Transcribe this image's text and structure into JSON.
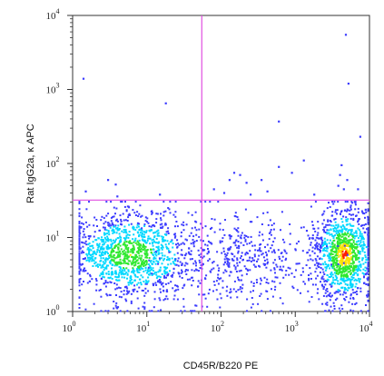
{
  "chart_data": {
    "type": "scatter",
    "subtype": "flow-cytometry-density-dot-plot",
    "xlabel": "CD45R/B220 PE",
    "ylabel": "Rat IgG2a, κ APC",
    "x_scale": "log",
    "y_scale": "log",
    "xlim": [
      1,
      10000
    ],
    "ylim": [
      1,
      10000
    ],
    "x_ticks": [
      {
        "value": 1,
        "base": "10",
        "exp": "0"
      },
      {
        "value": 10,
        "base": "10",
        "exp": "1"
      },
      {
        "value": 100,
        "base": "10",
        "exp": "2"
      },
      {
        "value": 1000,
        "base": "10",
        "exp": "3"
      },
      {
        "value": 10000,
        "base": "10",
        "exp": "4"
      }
    ],
    "y_ticks": [
      {
        "value": 1,
        "base": "10",
        "exp": "0"
      },
      {
        "value": 10,
        "base": "10",
        "exp": "1"
      },
      {
        "value": 100,
        "base": "10",
        "exp": "2"
      },
      {
        "value": 1000,
        "base": "10",
        "exp": "3"
      },
      {
        "value": 10000,
        "base": "10",
        "exp": "4"
      }
    ],
    "quadrant_gates": {
      "x": 55,
      "y": 32,
      "color": "#e04fe0"
    },
    "populations": [
      {
        "center_x": 6,
        "center_y": 6,
        "log_sd_x": 0.45,
        "log_sd_y": 0.3,
        "density": "high"
      },
      {
        "center_x": 4500,
        "center_y": 6,
        "log_sd_x": 0.2,
        "log_sd_y": 0.32,
        "density": "very-high"
      },
      {
        "center_x": 200,
        "center_y": 5,
        "log_sd_x": 0.5,
        "log_sd_y": 0.3,
        "density": "low"
      }
    ],
    "outliers": [
      {
        "x": 1.4,
        "y": 1400
      },
      {
        "x": 18,
        "y": 650
      },
      {
        "x": 4800,
        "y": 5500
      },
      {
        "x": 5200,
        "y": 1200
      },
      {
        "x": 600,
        "y": 370
      },
      {
        "x": 7500,
        "y": 230
      },
      {
        "x": 3,
        "y": 60
      },
      {
        "x": 3.8,
        "y": 52
      },
      {
        "x": 4,
        "y": 36
      },
      {
        "x": 15,
        "y": 38
      },
      {
        "x": 1.5,
        "y": 42
      },
      {
        "x": 150,
        "y": 75
      },
      {
        "x": 180,
        "y": 70
      },
      {
        "x": 130,
        "y": 60
      },
      {
        "x": 220,
        "y": 55
      },
      {
        "x": 350,
        "y": 60
      },
      {
        "x": 600,
        "y": 90
      },
      {
        "x": 900,
        "y": 75
      },
      {
        "x": 1300,
        "y": 110
      },
      {
        "x": 4200,
        "y": 95
      },
      {
        "x": 4000,
        "y": 70
      },
      {
        "x": 5000,
        "y": 60
      },
      {
        "x": 4500,
        "y": 45
      },
      {
        "x": 3800,
        "y": 50
      },
      {
        "x": 80,
        "y": 45
      },
      {
        "x": 110,
        "y": 40
      },
      {
        "x": 250,
        "y": 38
      },
      {
        "x": 420,
        "y": 42
      },
      {
        "x": 1800,
        "y": 38
      },
      {
        "x": 7000,
        "y": 45
      }
    ],
    "grid": false,
    "legend": "none",
    "colors": {
      "low": "#3c3cff",
      "mid": "#00d8ff",
      "high": "#ffe000",
      "peak": "#ff2000"
    }
  }
}
